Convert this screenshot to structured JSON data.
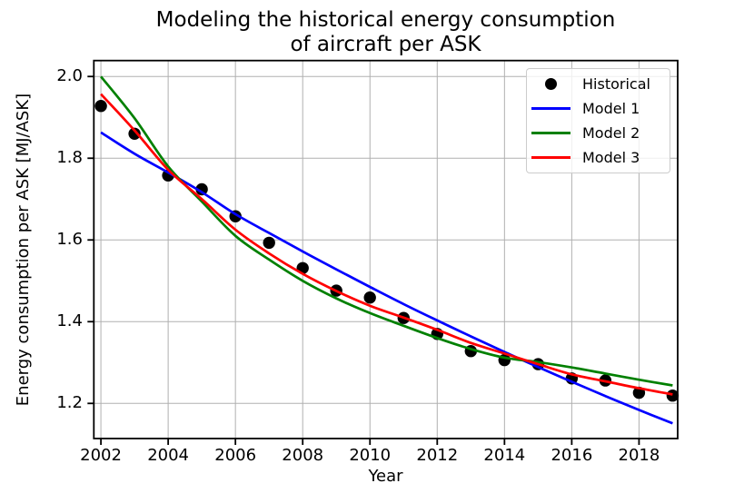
{
  "figure": {
    "title_line1": "Modeling the historical energy consumption",
    "title_line2": "of aircraft per ASK",
    "xlabel": "Year",
    "ylabel": "Energy consumption per ASK [MJ/ASK]"
  },
  "chart_data": {
    "type": "line",
    "title": "Modeling the historical energy consumption of aircraft per ASK",
    "xlabel": "Year",
    "ylabel": "Energy consumption per ASK [MJ/ASK]",
    "grid": true,
    "grid_color": "#b0b0b0",
    "background_color": "#ffffff",
    "axes_color": "#000000",
    "legend_position": "upper right",
    "xlim": [
      2001.79,
      2019.15
    ],
    "ylim": [
      1.114,
      2.039
    ],
    "x_ticks": [
      2002,
      2004,
      2006,
      2008,
      2010,
      2012,
      2014,
      2016,
      2018
    ],
    "x_tick_labels": [
      "2002",
      "2004",
      "2006",
      "2008",
      "2010",
      "2012",
      "2014",
      "2016",
      "2018"
    ],
    "y_ticks": [
      2.0,
      1.8,
      1.6,
      1.4,
      1.2
    ],
    "y_tick_labels": [
      "2.0",
      "1.8",
      "1.6",
      "1.4",
      "1.2"
    ],
    "x": [
      2002,
      2003,
      2004,
      2005,
      2006,
      2007,
      2008,
      2009,
      2010,
      2011,
      2012,
      2013,
      2014,
      2015,
      2016,
      2017,
      2018,
      2019
    ],
    "series": [
      {
        "name": "Historical",
        "type": "scatter",
        "marker": "circle",
        "color": "#000000",
        "values": [
          1.928,
          1.86,
          1.758,
          1.724,
          1.658,
          1.593,
          1.531,
          1.476,
          1.459,
          1.409,
          1.37,
          1.328,
          1.306,
          1.296,
          1.261,
          1.256,
          1.226,
          1.219
        ]
      },
      {
        "name": "Model 1",
        "type": "line",
        "color": "#0000ff",
        "values": [
          1.863,
          1.811,
          1.765,
          1.717,
          1.663,
          1.617,
          1.572,
          1.528,
          1.485,
          1.443,
          1.403,
          1.364,
          1.326,
          1.289,
          1.253,
          1.218,
          1.184,
          1.151
        ]
      },
      {
        "name": "Model 2",
        "type": "line",
        "color": "#008000",
        "values": [
          2.0,
          1.898,
          1.78,
          1.694,
          1.61,
          1.552,
          1.5,
          1.457,
          1.421,
          1.39,
          1.36,
          1.333,
          1.312,
          1.301,
          1.288,
          1.273,
          1.258,
          1.244
        ]
      },
      {
        "name": "Model 3",
        "type": "line",
        "color": "#ff0000",
        "values": [
          1.957,
          1.868,
          1.772,
          1.7,
          1.625,
          1.567,
          1.517,
          1.475,
          1.439,
          1.41,
          1.38,
          1.348,
          1.322,
          1.296,
          1.271,
          1.254,
          1.237,
          1.222
        ]
      }
    ]
  }
}
